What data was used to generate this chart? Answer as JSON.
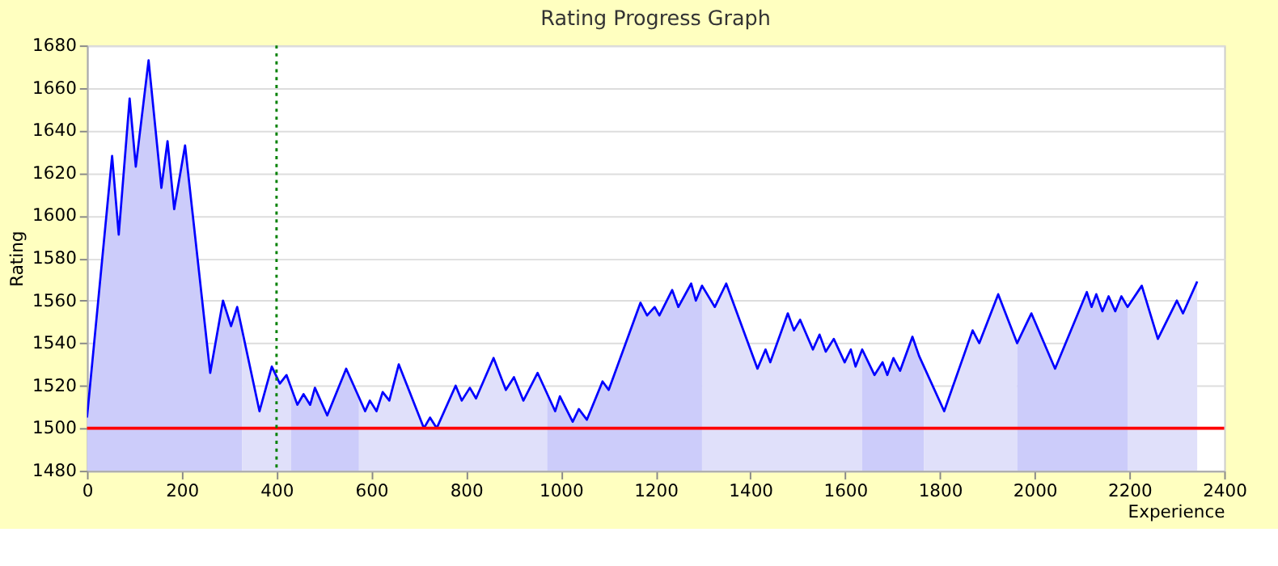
{
  "chart_data": {
    "type": "line",
    "title": "Rating Progress Graph",
    "xlabel": "Experience",
    "ylabel": "Rating",
    "xlim": [
      0,
      2400
    ],
    "xticks": [
      0,
      200,
      400,
      600,
      800,
      1000,
      1200,
      1400,
      1600,
      1800,
      2000,
      2200,
      2400
    ],
    "ylim": [
      1480,
      1680
    ],
    "yticks": [
      1480,
      1500,
      1520,
      1540,
      1560,
      1580,
      1600,
      1620,
      1640,
      1660,
      1680
    ],
    "grid": "y",
    "marker": "none",
    "line_style": "solid",
    "ref_lines": [
      {
        "axis": "y",
        "value": 1500,
        "color": "#ff0000",
        "line_style": "solid"
      },
      {
        "axis": "x",
        "value": 400,
        "color": "#008000",
        "line_style": "dotted"
      }
    ],
    "series": [
      {
        "type": "area",
        "color": "#ccccfa",
        "x": [
          0,
          53,
          67,
          90,
          103,
          130,
          157,
          170,
          184,
          207,
          260,
          287,
          304,
          317,
          327
        ],
        "values": [
          1505,
          1628,
          1591,
          1655,
          1623,
          1673,
          1613,
          1635,
          1603,
          1633,
          1526,
          1560,
          1548,
          1557,
          1547
        ]
      },
      {
        "type": "area",
        "color": "#e0e0fa",
        "x": [
          327,
          364,
          390,
          407,
          421,
          431
        ],
        "values": [
          1547,
          1508,
          1529,
          1521,
          1525,
          1519
        ]
      },
      {
        "type": "area",
        "color": "#ccccfa",
        "x": [
          431,
          444,
          457,
          471,
          481,
          507,
          547,
          574
        ],
        "values": [
          1519,
          1511,
          1516,
          1511,
          1519,
          1506,
          1528,
          1514
        ]
      },
      {
        "type": "area",
        "color": "#e0e0fa",
        "x": [
          574,
          587,
          597,
          611,
          624,
          638,
          658,
          711,
          724,
          738,
          778,
          791,
          808,
          821,
          858,
          884,
          901,
          921,
          951,
          971
        ],
        "values": [
          1514,
          1508,
          1513,
          1508,
          1517,
          1513,
          1530,
          1500,
          1505,
          1500,
          1520,
          1513,
          1519,
          1514,
          1533,
          1518,
          1524,
          1513,
          1526,
          1517
        ]
      },
      {
        "type": "area",
        "color": "#ccccfa",
        "x": [
          971,
          988,
          998,
          1025,
          1038,
          1055,
          1088,
          1101,
          1168,
          1182,
          1198,
          1208,
          1235,
          1248,
          1275,
          1285,
          1298
        ],
        "values": [
          1517,
          1508,
          1515,
          1503,
          1509,
          1504,
          1522,
          1518,
          1559,
          1553,
          1557,
          1553,
          1565,
          1557,
          1568,
          1560,
          1567
        ]
      },
      {
        "type": "area",
        "color": "#e0e0fa",
        "x": [
          1298,
          1325,
          1349,
          1415,
          1432,
          1442,
          1479,
          1492,
          1505,
          1532,
          1546,
          1559,
          1576,
          1599,
          1612,
          1622,
          1636
        ],
        "values": [
          1567,
          1557,
          1568,
          1528,
          1537,
          1531,
          1554,
          1546,
          1551,
          1537,
          1544,
          1536,
          1542,
          1531,
          1537,
          1529,
          1537
        ]
      },
      {
        "type": "area",
        "color": "#ccccfa",
        "x": [
          1636,
          1662,
          1679,
          1689,
          1702,
          1716,
          1742,
          1756,
          1766
        ],
        "values": [
          1537,
          1525,
          1531,
          1525,
          1533,
          1527,
          1543,
          1534,
          1529
        ]
      },
      {
        "type": "area",
        "color": "#e0e0fa",
        "x": [
          1766,
          1809,
          1869,
          1883,
          1923,
          1963
        ],
        "values": [
          1529,
          1508,
          1546,
          1540,
          1563,
          1540
        ]
      },
      {
        "type": "area",
        "color": "#ccccfa",
        "x": [
          1963,
          1993,
          2043,
          2110,
          2120,
          2130,
          2143,
          2156,
          2170,
          2183,
          2196
        ],
        "values": [
          1540,
          1554,
          1528,
          1564,
          1557,
          1563,
          1555,
          1562,
          1555,
          1562,
          1557
        ]
      },
      {
        "type": "area",
        "color": "#e0e0fa",
        "x": [
          2196,
          2226,
          2260,
          2300,
          2313,
          2343
        ],
        "values": [
          1557,
          1567,
          1542,
          1560,
          1554,
          1569
        ]
      },
      {
        "color": "#0000ff",
        "x": [
          0,
          53,
          67,
          90,
          103,
          130,
          157,
          170,
          184,
          207,
          260,
          287,
          304,
          317,
          364,
          390,
          407,
          421,
          444,
          457,
          471,
          481,
          507,
          547,
          587,
          597,
          611,
          624,
          638,
          658,
          711,
          724,
          738,
          778,
          791,
          808,
          821,
          858,
          884,
          901,
          921,
          951,
          988,
          998,
          1025,
          1038,
          1055,
          1088,
          1101,
          1168,
          1182,
          1198,
          1208,
          1235,
          1248,
          1275,
          1285,
          1298,
          1325,
          1349,
          1415,
          1432,
          1442,
          1479,
          1492,
          1505,
          1532,
          1546,
          1559,
          1576,
          1599,
          1612,
          1622,
          1636,
          1662,
          1679,
          1689,
          1702,
          1716,
          1742,
          1756,
          1809,
          1869,
          1883,
          1923,
          1963,
          1993,
          2043,
          2110,
          2120,
          2130,
          2143,
          2156,
          2170,
          2183,
          2196,
          2226,
          2260,
          2300,
          2313,
          2343
        ],
        "values": [
          1505,
          1628,
          1591,
          1655,
          1623,
          1673,
          1613,
          1635,
          1603,
          1633,
          1526,
          1560,
          1548,
          1557,
          1508,
          1529,
          1521,
          1525,
          1511,
          1516,
          1511,
          1519,
          1506,
          1528,
          1508,
          1513,
          1508,
          1517,
          1513,
          1530,
          1500,
          1505,
          1500,
          1520,
          1513,
          1519,
          1514,
          1533,
          1518,
          1524,
          1513,
          1526,
          1508,
          1515,
          1503,
          1509,
          1504,
          1522,
          1518,
          1559,
          1553,
          1557,
          1553,
          1565,
          1557,
          1568,
          1560,
          1567,
          1557,
          1568,
          1528,
          1537,
          1531,
          1554,
          1546,
          1551,
          1537,
          1544,
          1536,
          1542,
          1531,
          1537,
          1529,
          1537,
          1525,
          1531,
          1525,
          1533,
          1527,
          1543,
          1534,
          1508,
          1546,
          1540,
          1563,
          1540,
          1554,
          1528,
          1564,
          1557,
          1563,
          1555,
          1562,
          1555,
          1562,
          1557,
          1567,
          1542,
          1560,
          1554,
          1569
        ]
      }
    ]
  }
}
